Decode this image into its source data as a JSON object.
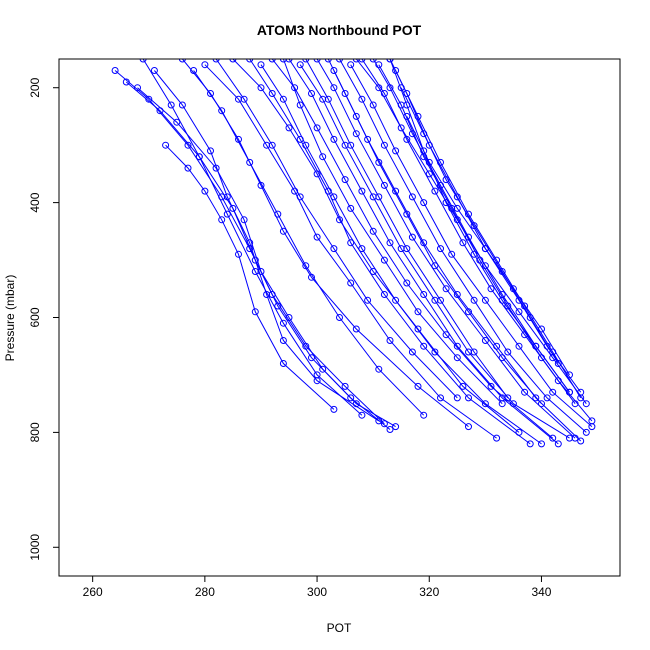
{
  "chart_data": {
    "type": "line",
    "title": "ATOM3 Northbound POT",
    "xlabel": "POT",
    "ylabel": "Pressure (mbar)",
    "xlim": [
      254,
      354
    ],
    "ylim": [
      1050,
      150
    ],
    "y_reversed": true,
    "x_ticks": [
      260,
      280,
      300,
      320,
      340
    ],
    "y_ticks": [
      200,
      400,
      600,
      800,
      1000
    ],
    "grid": false,
    "legend": "none",
    "color": "#0000ff",
    "markers": "open-circle",
    "series": [
      {
        "x": [
          264,
          270,
          277,
          283,
          288,
          292,
          298,
          305,
          312
        ],
        "y": [
          170,
          220,
          300,
          390,
          480,
          560,
          650,
          720,
          785
        ]
      },
      {
        "x": [
          266,
          272,
          279,
          285,
          289,
          293,
          299,
          306,
          313
        ],
        "y": [
          190,
          240,
          320,
          410,
          500,
          580,
          670,
          740,
          795
        ]
      },
      {
        "x": [
          268,
          275,
          282,
          287,
          290,
          295,
          301,
          307,
          314
        ],
        "y": [
          200,
          260,
          340,
          430,
          520,
          600,
          690,
          750,
          790
        ]
      },
      {
        "x": [
          271,
          276,
          281,
          284,
          288,
          291,
          294,
          300,
          311
        ],
        "y": [
          170,
          230,
          310,
          390,
          470,
          560,
          640,
          710,
          780
        ]
      },
      {
        "x": [
          273,
          277,
          280,
          283,
          286,
          289,
          294,
          303
        ],
        "y": [
          300,
          340,
          380,
          430,
          490,
          590,
          680,
          760
        ]
      },
      {
        "x": [
          276,
          281,
          286,
          290,
          294,
          299,
          307,
          318,
          327
        ],
        "y": [
          150,
          210,
          290,
          370,
          450,
          530,
          620,
          720,
          790
        ]
      },
      {
        "x": [
          280,
          286,
          291,
          296,
          300,
          306,
          313,
          322,
          332
        ],
        "y": [
          160,
          220,
          300,
          380,
          460,
          540,
          640,
          740,
          810
        ]
      },
      {
        "x": [
          285,
          290,
          295,
          300,
          304,
          310,
          318,
          326,
          336
        ],
        "y": [
          150,
          200,
          270,
          350,
          430,
          520,
          620,
          720,
          800
        ]
      },
      {
        "x": [
          288,
          292,
          297,
          302,
          306,
          312,
          319,
          327,
          338
        ],
        "y": [
          150,
          210,
          290,
          380,
          470,
          560,
          650,
          740,
          820
        ]
      },
      {
        "x": [
          290,
          294,
          298,
          303,
          308,
          314,
          321,
          330,
          340
        ],
        "y": [
          160,
          220,
          300,
          390,
          480,
          570,
          660,
          750,
          820
        ]
      },
      {
        "x": [
          292,
          296,
          300,
          305,
          310,
          316,
          323,
          331,
          342
        ],
        "y": [
          150,
          200,
          270,
          360,
          450,
          540,
          630,
          720,
          810
        ]
      },
      {
        "x": [
          295,
          299,
          303,
          308,
          313,
          319,
          325,
          333,
          343
        ],
        "y": [
          150,
          210,
          290,
          380,
          470,
          560,
          650,
          740,
          820
        ]
      },
      {
        "x": [
          297,
          301,
          305,
          310,
          315,
          321,
          327,
          335,
          345
        ],
        "y": [
          160,
          220,
          300,
          390,
          480,
          570,
          660,
          750,
          810
        ]
      },
      {
        "x": [
          300,
          303,
          307,
          312,
          317,
          323,
          330,
          337,
          346
        ],
        "y": [
          150,
          200,
          280,
          370,
          460,
          550,
          640,
          730,
          810
        ]
      },
      {
        "x": [
          302,
          305,
          309,
          314,
          319,
          325,
          332,
          339,
          347
        ],
        "y": [
          150,
          210,
          290,
          380,
          470,
          560,
          650,
          740,
          815
        ]
      },
      {
        "x": [
          304,
          308,
          312,
          317,
          322,
          328,
          334,
          341,
          348
        ],
        "y": [
          150,
          220,
          300,
          390,
          480,
          570,
          660,
          740,
          800
        ]
      },
      {
        "x": [
          306,
          310,
          314,
          319,
          324,
          330,
          336,
          342,
          349
        ],
        "y": [
          160,
          230,
          310,
          400,
          490,
          570,
          650,
          730,
          790
        ]
      },
      {
        "x": [
          308,
          312,
          316,
          321,
          326,
          331,
          337,
          343,
          349
        ],
        "y": [
          150,
          210,
          290,
          380,
          470,
          550,
          630,
          710,
          780
        ]
      },
      {
        "x": [
          310,
          313,
          317,
          322,
          327,
          333,
          339,
          345
        ],
        "y": [
          150,
          200,
          280,
          370,
          460,
          560,
          650,
          730
        ]
      },
      {
        "x": [
          311,
          315,
          319,
          324,
          329,
          334,
          340,
          346
        ],
        "y": [
          160,
          230,
          320,
          410,
          500,
          580,
          670,
          750
        ]
      },
      {
        "x": [
          313,
          316,
          320,
          325,
          330,
          336,
          341,
          347
        ],
        "y": [
          150,
          210,
          300,
          390,
          480,
          570,
          650,
          730
        ]
      },
      {
        "x": [
          314,
          318,
          322,
          327,
          332,
          337,
          342,
          347
        ],
        "y": [
          170,
          250,
          330,
          420,
          500,
          580,
          660,
          740
        ]
      },
      {
        "x": [
          315,
          319,
          323,
          328,
          333,
          338,
          343
        ],
        "y": [
          200,
          280,
          360,
          440,
          520,
          600,
          680
        ]
      },
      {
        "x": [
          313,
          316,
          319,
          323,
          328,
          333,
          339,
          345
        ],
        "y": [
          150,
          230,
          310,
          400,
          490,
          570,
          650,
          730
        ]
      },
      {
        "x": [
          316,
          320,
          325,
          330,
          335,
          340,
          345
        ],
        "y": [
          250,
          330,
          410,
          480,
          550,
          620,
          700
        ]
      },
      {
        "x": [
          298,
          302,
          306,
          311,
          316,
          322,
          328,
          334
        ],
        "y": [
          150,
          220,
          300,
          390,
          480,
          570,
          660,
          740
        ]
      },
      {
        "x": [
          294,
          297,
          301,
          306,
          312,
          318,
          325,
          333
        ],
        "y": [
          150,
          230,
          320,
          410,
          500,
          590,
          670,
          750
        ]
      },
      {
        "x": [
          282,
          287,
          292,
          297,
          303,
          309,
          317,
          325
        ],
        "y": [
          150,
          220,
          300,
          390,
          480,
          570,
          660,
          740
        ]
      },
      {
        "x": [
          278,
          283,
          288,
          293,
          298,
          304,
          311,
          319
        ],
        "y": [
          170,
          240,
          330,
          420,
          510,
          600,
          690,
          770
        ]
      },
      {
        "x": [
          269,
          274,
          279,
          284,
          289,
          294,
          300,
          308
        ],
        "y": [
          150,
          230,
          320,
          420,
          520,
          610,
          700,
          770
        ]
      },
      {
        "x": [
          303,
          307,
          311,
          316,
          321,
          327,
          333,
          340
        ],
        "y": [
          170,
          250,
          330,
          420,
          510,
          590,
          670,
          750
        ]
      },
      {
        "x": [
          307,
          311,
          315,
          320,
          325,
          330,
          336,
          342,
          348
        ],
        "y": [
          150,
          200,
          270,
          350,
          430,
          510,
          590,
          670,
          750
        ]
      }
    ]
  }
}
